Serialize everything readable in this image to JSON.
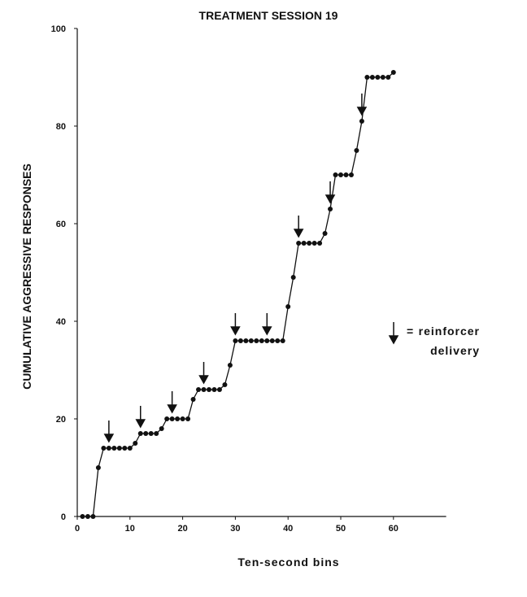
{
  "chart_data": {
    "type": "line",
    "title": "TREATMENT SESSION 19",
    "x_label": "Ten-second bins",
    "y_label": "CUMULATIVE AGGRESSIVE RESPONSES",
    "x": [
      1,
      2,
      3,
      4,
      5,
      6,
      7,
      8,
      9,
      10,
      11,
      12,
      13,
      14,
      15,
      16,
      17,
      18,
      19,
      20,
      21,
      22,
      23,
      24,
      25,
      26,
      27,
      28,
      29,
      30,
      31,
      32,
      33,
      34,
      35,
      36,
      37,
      38,
      39,
      40,
      41,
      42,
      43,
      44,
      45,
      46,
      47,
      48,
      49,
      50,
      51,
      52,
      53,
      54,
      55,
      56,
      57,
      58,
      59,
      60
    ],
    "series": [
      {
        "color": "#111111",
        "values": [
          0,
          0,
          0,
          10,
          14,
          14,
          14,
          14,
          14,
          14,
          15,
          17,
          17,
          17,
          17,
          18,
          20,
          20,
          20,
          20,
          20,
          24,
          26,
          26,
          26,
          26,
          26,
          27,
          31,
          36,
          36,
          36,
          36,
          36,
          36,
          36,
          36,
          36,
          36,
          43,
          49,
          56,
          56,
          56,
          56,
          56,
          58,
          63,
          70,
          70,
          70,
          70,
          75,
          81,
          90,
          90,
          90,
          90,
          90,
          91
        ]
      }
    ],
    "reinforcer_x": [
      6,
      12,
      18,
      24,
      30,
      36,
      42,
      48,
      54
    ],
    "legend": {
      "symbol": "=",
      "lines": [
        "reinforcer",
        "delivery"
      ]
    },
    "xlim": [
      0,
      70
    ],
    "ylim": [
      0,
      100
    ],
    "xticks": [
      0,
      10,
      20,
      30,
      40,
      50,
      60
    ],
    "yticks": [
      0,
      20,
      40,
      60,
      80,
      100
    ]
  }
}
